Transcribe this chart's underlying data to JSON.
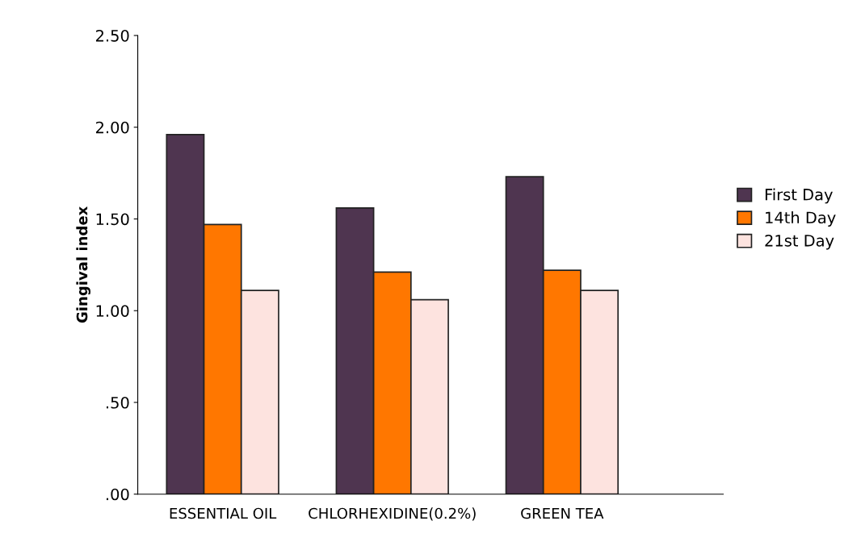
{
  "chart_data": {
    "type": "bar",
    "ylabel": "Gingival index",
    "categories": [
      "ESSENTIAL OIL",
      "CHLORHEXIDINE(0.2%)",
      "GREEN TEA"
    ],
    "series": [
      {
        "name": "First Day",
        "color": "#4f3550",
        "values": [
          1.96,
          1.56,
          1.73
        ]
      },
      {
        "name": "14th Day",
        "color": "#ff7700",
        "values": [
          1.47,
          1.21,
          1.22
        ]
      },
      {
        "name": "21st Day",
        "color": "#fde3df",
        "values": [
          1.11,
          1.06,
          1.11
        ]
      }
    ],
    "ylim": [
      0,
      2.5
    ],
    "yticks": [
      {
        "value": 0,
        "label": ".00"
      },
      {
        "value": 0.5,
        "label": ".50"
      },
      {
        "value": 1.0,
        "label": "1.00"
      },
      {
        "value": 1.5,
        "label": "1.50"
      },
      {
        "value": 2.0,
        "label": "2.00"
      },
      {
        "value": 2.5,
        "label": "2.50"
      }
    ],
    "grid": false,
    "legend": "right"
  }
}
